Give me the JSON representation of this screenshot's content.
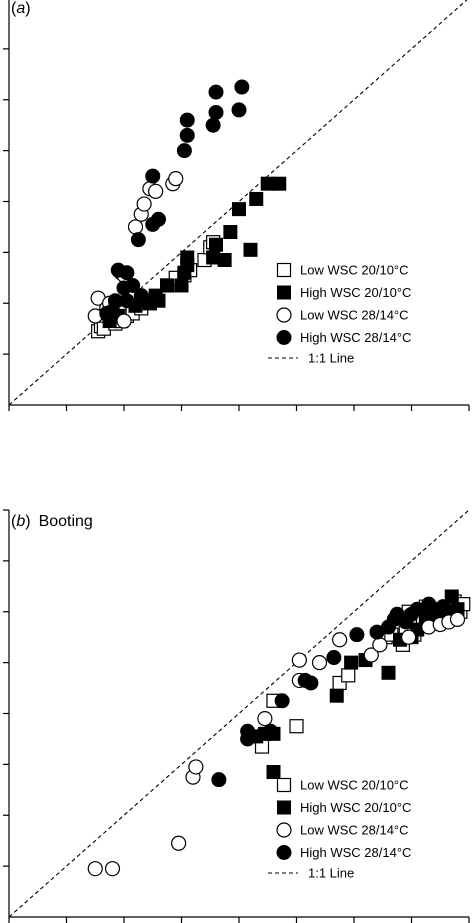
{
  "chart_data": [
    {
      "type": "scatter",
      "panel_letter": "a",
      "panel_name": "",
      "xlim": [
        0,
        8
      ],
      "ylim": [
        0,
        8
      ],
      "x_ticks": [
        0,
        1,
        2,
        3,
        4,
        5,
        6,
        7,
        8
      ],
      "y_ticks": [
        1,
        2,
        3,
        4,
        5,
        6,
        7,
        8
      ],
      "grid": false,
      "legend_position": "bottom-right",
      "reference_line": {
        "label": "1:1 Line",
        "style": "dashed",
        "from": [
          0,
          0
        ],
        "to": [
          8,
          8
        ]
      },
      "series": [
        {
          "name": "Low WSC 20/10°C",
          "marker": "open-square",
          "points": [
            [
              1.55,
              1.45
            ],
            [
              1.6,
              1.55
            ],
            [
              1.65,
              1.5
            ],
            [
              1.85,
              1.6
            ],
            [
              1.95,
              1.65
            ],
            [
              2.05,
              1.75
            ],
            [
              2.15,
              1.8
            ],
            [
              2.3,
              1.9
            ],
            [
              2.45,
              2.0
            ],
            [
              2.75,
              2.35
            ],
            [
              2.9,
              2.5
            ],
            [
              3.05,
              2.55
            ],
            [
              3.15,
              2.65
            ],
            [
              3.4,
              2.85
            ],
            [
              3.5,
              3.1
            ],
            [
              3.55,
              3.2
            ]
          ]
        },
        {
          "name": "High WSC 20/10°C",
          "marker": "filled-square",
          "points": [
            [
              1.75,
              1.65
            ],
            [
              1.9,
              1.75
            ],
            [
              2.2,
              1.95
            ],
            [
              2.35,
              2.05
            ],
            [
              2.45,
              2.0
            ],
            [
              2.55,
              2.15
            ],
            [
              2.6,
              2.05
            ],
            [
              2.75,
              2.35
            ],
            [
              3.0,
              2.35
            ],
            [
              3.05,
              2.6
            ],
            [
              3.1,
              2.75
            ],
            [
              3.1,
              2.9
            ],
            [
              3.55,
              2.9
            ],
            [
              3.6,
              3.15
            ],
            [
              3.75,
              2.85
            ],
            [
              3.85,
              3.4
            ],
            [
              4.0,
              3.85
            ],
            [
              4.2,
              3.05
            ],
            [
              4.3,
              4.05
            ],
            [
              4.5,
              4.35
            ],
            [
              4.7,
              4.35
            ]
          ]
        },
        {
          "name": "Low WSC 28/14°C",
          "marker": "open-circle",
          "points": [
            [
              1.5,
              1.75
            ],
            [
              1.55,
              2.1
            ],
            [
              1.7,
              1.9
            ],
            [
              1.75,
              2.0
            ],
            [
              2.0,
              1.65
            ],
            [
              1.95,
              2.6
            ],
            [
              2.0,
              2.55
            ],
            [
              2.2,
              3.5
            ],
            [
              2.3,
              3.75
            ],
            [
              2.35,
              3.95
            ],
            [
              2.45,
              4.25
            ],
            [
              2.55,
              4.2
            ],
            [
              2.85,
              4.35
            ],
            [
              2.9,
              4.45
            ]
          ]
        },
        {
          "name": "High WSC 28/14°C",
          "marker": "filled-circle",
          "points": [
            [
              1.7,
              1.8
            ],
            [
              1.8,
              1.85
            ],
            [
              1.85,
              2.05
            ],
            [
              1.9,
              2.65
            ],
            [
              2.0,
              2.3
            ],
            [
              2.05,
              2.6
            ],
            [
              2.05,
              2.05
            ],
            [
              2.15,
              2.35
            ],
            [
              2.3,
              2.15
            ],
            [
              2.25,
              3.25
            ],
            [
              2.5,
              3.55
            ],
            [
              2.5,
              4.5
            ],
            [
              2.6,
              3.65
            ],
            [
              3.05,
              5.0
            ],
            [
              3.1,
              5.3
            ],
            [
              3.1,
              5.6
            ],
            [
              3.55,
              5.5
            ],
            [
              3.6,
              5.75
            ],
            [
              3.6,
              6.15
            ],
            [
              4.0,
              5.8
            ],
            [
              4.05,
              6.25
            ]
          ]
        }
      ]
    },
    {
      "type": "scatter",
      "panel_letter": "b",
      "panel_name": "Booting",
      "xlim": [
        0,
        8
      ],
      "ylim": [
        0,
        8
      ],
      "x_ticks": [
        0,
        1,
        2,
        3,
        4,
        5,
        6,
        7,
        8
      ],
      "y_ticks": [
        1,
        2,
        3,
        4,
        5,
        6,
        7,
        8
      ],
      "grid": false,
      "legend_position": "bottom-right",
      "reference_line": {
        "label": "1:1 Line",
        "style": "dashed",
        "from": [
          0,
          0
        ],
        "to": [
          8,
          8
        ]
      },
      "series": [
        {
          "name": "Low WSC 20/10°C",
          "marker": "open-square",
          "points": [
            [
              4.4,
              3.35
            ],
            [
              4.6,
              4.25
            ],
            [
              5.0,
              3.75
            ],
            [
              5.75,
              4.6
            ],
            [
              5.9,
              4.75
            ],
            [
              6.55,
              5.5
            ],
            [
              6.65,
              5.55
            ],
            [
              6.85,
              5.35
            ],
            [
              6.9,
              5.65
            ],
            [
              6.95,
              6.0
            ],
            [
              7.0,
              5.9
            ],
            [
              7.05,
              5.55
            ],
            [
              7.2,
              5.85
            ],
            [
              7.25,
              6.1
            ],
            [
              7.4,
              6.05
            ],
            [
              7.6,
              5.85
            ],
            [
              7.7,
              5.95
            ],
            [
              7.75,
              6.2
            ],
            [
              7.85,
              6.0
            ],
            [
              7.9,
              6.15
            ]
          ]
        },
        {
          "name": "High WSC 20/10°C",
          "marker": "filled-square",
          "points": [
            [
              4.3,
              3.55
            ],
            [
              4.45,
              3.6
            ],
            [
              4.6,
              3.6
            ],
            [
              4.6,
              2.85
            ],
            [
              5.7,
              4.35
            ],
            [
              5.95,
              5.0
            ],
            [
              6.2,
              5.05
            ],
            [
              6.6,
              4.8
            ],
            [
              6.8,
              5.45
            ],
            [
              7.0,
              5.5
            ],
            [
              7.1,
              5.65
            ],
            [
              7.25,
              5.9
            ],
            [
              7.35,
              5.8
            ],
            [
              7.5,
              6.05
            ],
            [
              7.6,
              5.95
            ],
            [
              7.7,
              6.3
            ],
            [
              7.8,
              6.05
            ]
          ]
        },
        {
          "name": "Low WSC 28/14°C",
          "marker": "open-circle",
          "points": [
            [
              1.5,
              0.95
            ],
            [
              1.8,
              0.95
            ],
            [
              2.95,
              1.45
            ],
            [
              3.2,
              2.75
            ],
            [
              3.25,
              2.95
            ],
            [
              4.45,
              3.9
            ],
            [
              5.05,
              4.65
            ],
            [
              5.05,
              5.05
            ],
            [
              5.4,
              5.0
            ],
            [
              5.75,
              5.45
            ],
            [
              6.3,
              5.15
            ],
            [
              6.45,
              5.35
            ],
            [
              6.95,
              5.5
            ],
            [
              7.3,
              5.7
            ],
            [
              7.5,
              5.75
            ],
            [
              7.65,
              5.8
            ],
            [
              7.8,
              5.85
            ]
          ]
        },
        {
          "name": "High WSC 28/14°C",
          "marker": "filled-circle",
          "points": [
            [
              3.65,
              2.7
            ],
            [
              4.15,
              3.65
            ],
            [
              4.15,
              3.5
            ],
            [
              4.55,
              3.65
            ],
            [
              4.75,
              4.25
            ],
            [
              5.15,
              4.65
            ],
            [
              5.25,
              4.6
            ],
            [
              5.65,
              5.1
            ],
            [
              6.05,
              5.55
            ],
            [
              6.4,
              5.6
            ],
            [
              6.6,
              5.7
            ],
            [
              6.7,
              5.85
            ],
            [
              6.75,
              5.95
            ],
            [
              6.9,
              5.8
            ],
            [
              7.0,
              5.95
            ],
            [
              7.1,
              6.05
            ],
            [
              7.3,
              6.15
            ],
            [
              7.4,
              6.0
            ],
            [
              7.55,
              6.1
            ]
          ]
        }
      ]
    }
  ]
}
